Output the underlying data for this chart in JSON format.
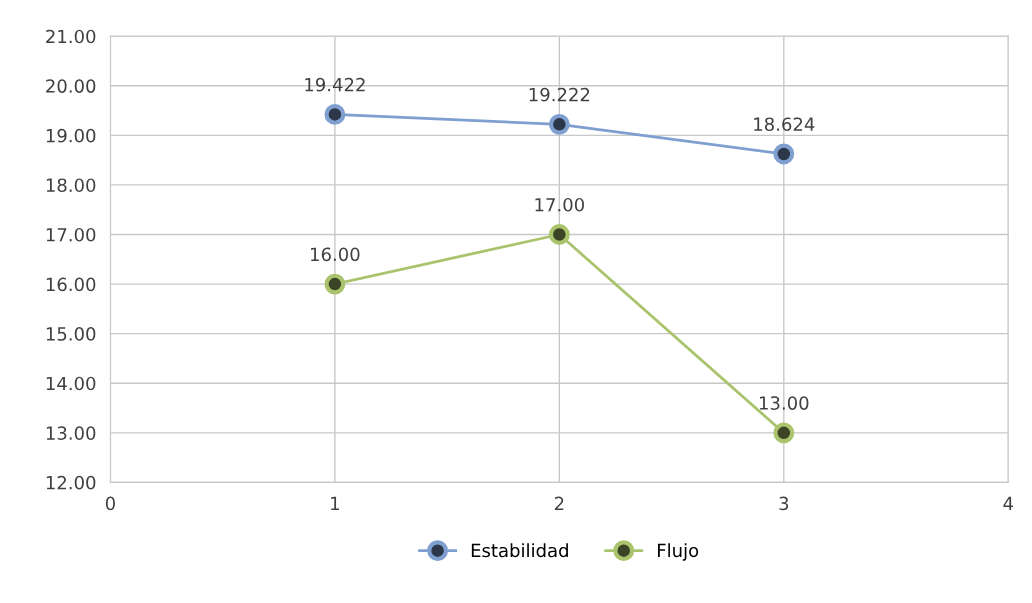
{
  "chart_data": {
    "type": "line",
    "x": [
      1,
      2,
      3
    ],
    "series": [
      {
        "name": "Estabilidad",
        "color": "#7f9fd0",
        "values": [
          19.422,
          19.222,
          18.624
        ],
        "value_labels": [
          "19.422",
          "19.222",
          "18.624"
        ]
      },
      {
        "name": "Flujo",
        "color": "#a9c46c",
        "values": [
          16,
          17,
          13
        ],
        "value_labels": [
          "16.00",
          "17.00",
          "13.00"
        ]
      }
    ],
    "xlim": [
      0,
      4
    ],
    "xticks": [
      0,
      1,
      2,
      3,
      4
    ],
    "ylim": [
      12,
      21
    ],
    "yticks": [
      {
        "value": 12,
        "label": "12.00"
      },
      {
        "value": 13,
        "label": "13.00"
      },
      {
        "value": 14,
        "label": "14.00"
      },
      {
        "value": 15,
        "label": "15.00"
      },
      {
        "value": 16,
        "label": "16.00"
      },
      {
        "value": 17,
        "label": "17.00"
      },
      {
        "value": 18,
        "label": "18.00"
      },
      {
        "value": 19,
        "label": "19.00"
      },
      {
        "value": 20,
        "label": "20.00"
      },
      {
        "value": 21,
        "label": "21.00"
      }
    ],
    "grid": true,
    "legend": "bottom",
    "marker": "circle",
    "line_style": "solid"
  }
}
